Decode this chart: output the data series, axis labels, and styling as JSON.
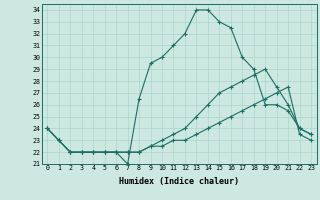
{
  "xlabel": "Humidex (Indice chaleur)",
  "bg_color": "#cce8e0",
  "line_color": "#1a6e64",
  "grid_color": "#aad4cc",
  "xlim": [
    -0.5,
    23.5
  ],
  "ylim": [
    21,
    34.5
  ],
  "yticks": [
    21,
    22,
    23,
    24,
    25,
    26,
    27,
    28,
    29,
    30,
    31,
    32,
    33,
    34
  ],
  "xticks": [
    0,
    1,
    2,
    3,
    4,
    5,
    6,
    7,
    8,
    9,
    10,
    11,
    12,
    13,
    14,
    15,
    16,
    17,
    18,
    19,
    20,
    21,
    22,
    23
  ],
  "series": [
    {
      "x": [
        0,
        1,
        2,
        3,
        4,
        5,
        6,
        7,
        8,
        9,
        10,
        11,
        12,
        13,
        14,
        15,
        16,
        17,
        18,
        19,
        20,
        21,
        22,
        23
      ],
      "y": [
        24,
        23,
        22,
        22,
        22,
        22,
        22,
        21,
        26.5,
        29.5,
        30,
        31,
        32,
        34,
        34,
        33,
        32.5,
        30,
        29,
        26,
        26,
        25.5,
        24,
        23.5
      ]
    },
    {
      "x": [
        0,
        1,
        2,
        3,
        4,
        5,
        6,
        7,
        8,
        9,
        10,
        11,
        12,
        13,
        14,
        15,
        16,
        17,
        18,
        19,
        20,
        21,
        22,
        23
      ],
      "y": [
        24,
        23,
        22,
        22,
        22,
        22,
        22,
        22,
        22,
        22.5,
        23,
        23.5,
        24,
        25,
        26,
        27,
        27.5,
        28,
        28.5,
        29,
        27.5,
        26,
        24,
        23.5
      ]
    },
    {
      "x": [
        0,
        1,
        2,
        3,
        4,
        5,
        6,
        7,
        8,
        9,
        10,
        11,
        12,
        13,
        14,
        15,
        16,
        17,
        18,
        19,
        20,
        21,
        22,
        23
      ],
      "y": [
        24,
        23,
        22,
        22,
        22,
        22,
        22,
        22,
        22,
        22.5,
        22.5,
        23,
        23,
        23.5,
        24,
        24.5,
        25,
        25.5,
        26,
        26.5,
        27,
        27.5,
        23.5,
        23
      ]
    }
  ]
}
